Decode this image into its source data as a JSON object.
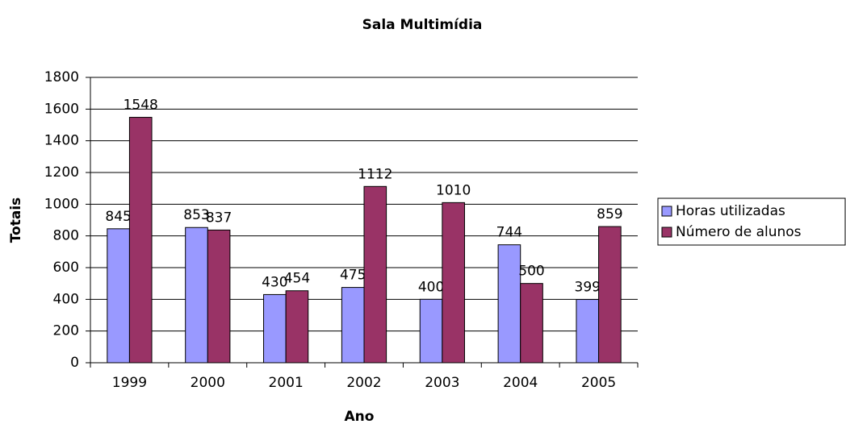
{
  "chart_data": {
    "type": "bar",
    "title": "Sala Multimídia",
    "x_label": "Ano",
    "y_label": "Totais",
    "categories": [
      "1999",
      "2000",
      "2001",
      "2002",
      "2003",
      "2004",
      "2005"
    ],
    "series": [
      {
        "name": "Horas utilizadas",
        "color": "#9999ff",
        "values": [
          845,
          853,
          430,
          475,
          400,
          744,
          399
        ]
      },
      {
        "name": "Número de alunos",
        "color": "#993366",
        "values": [
          1548,
          837,
          454,
          1112,
          1010,
          500,
          859
        ]
      }
    ],
    "ylim": [
      0,
      1800
    ],
    "yticks": [
      0,
      200,
      400,
      600,
      800,
      1000,
      1200,
      1400,
      1600,
      1800
    ],
    "grid": true,
    "legend": "right"
  }
}
